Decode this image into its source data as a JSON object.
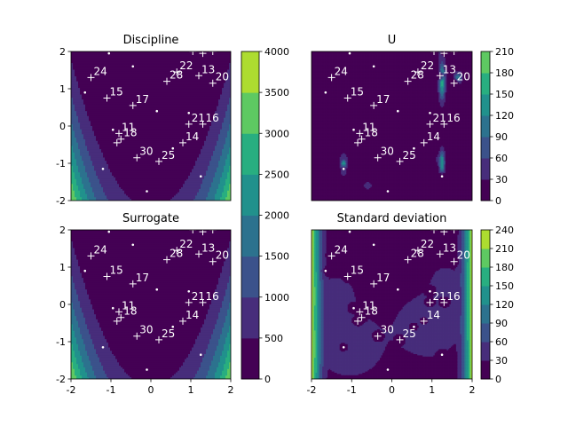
{
  "figure": {
    "colormap": [
      "#440154",
      "#472d7b",
      "#3b528b",
      "#2c728e",
      "#21918c",
      "#28ae80",
      "#5ec962",
      "#addc30",
      "#fde725"
    ],
    "point_color": "#ffffff"
  },
  "chart_data": [
    {
      "type": "heatmap",
      "title": "Discipline",
      "field": "rosenbrock",
      "xlim": [
        -2,
        2
      ],
      "ylim": [
        -2,
        2
      ],
      "xticks": [],
      "yticks": [
        -2,
        -1,
        0,
        1,
        2
      ],
      "colorbar": {
        "levels": [
          0,
          500,
          1000,
          1500,
          2000,
          2500,
          3000,
          3500,
          4000
        ],
        "ticks": [
          0,
          500,
          1000,
          1500,
          2000,
          2500,
          3000,
          3500,
          4000
        ]
      }
    },
    {
      "type": "heatmap",
      "title": "U",
      "field": "u",
      "xlim": [
        -2,
        2
      ],
      "ylim": [
        -2,
        2
      ],
      "xticks": [],
      "yticks": [],
      "colorbar": {
        "levels": [
          0,
          30,
          60,
          90,
          120,
          150,
          180,
          210
        ],
        "ticks": [
          0,
          30,
          60,
          90,
          120,
          150,
          180,
          210
        ]
      }
    },
    {
      "type": "heatmap",
      "title": "Surrogate",
      "field": "surrogate",
      "xlim": [
        -2,
        2
      ],
      "ylim": [
        -2,
        2
      ],
      "xticks": [
        -2,
        -1,
        0,
        1,
        2
      ],
      "yticks": [
        -2,
        -1,
        0,
        1,
        2
      ]
    },
    {
      "type": "heatmap",
      "title": "Standard deviation",
      "field": "std",
      "xlim": [
        -2,
        2
      ],
      "ylim": [
        -2,
        2
      ],
      "xticks": [
        -2,
        -1,
        0,
        1,
        2
      ],
      "yticks": [],
      "colorbar": {
        "levels": [
          0,
          30,
          60,
          90,
          120,
          150,
          180,
          210,
          240
        ],
        "ticks": [
          0,
          30,
          60,
          90,
          120,
          150,
          180,
          210,
          240
        ]
      }
    }
  ],
  "points": {
    "labeled": [
      {
        "label": "11",
        "x": -0.8,
        "y": -0.2
      },
      {
        "label": "13",
        "x": 1.2,
        "y": 1.35
      },
      {
        "label": "14",
        "x": 0.8,
        "y": -0.45
      },
      {
        "label": "15",
        "x": -1.1,
        "y": 0.75
      },
      {
        "label": "16",
        "x": 1.3,
        "y": 0.05
      },
      {
        "label": "17",
        "x": -0.45,
        "y": 0.55
      },
      {
        "label": "18",
        "x": -0.75,
        "y": -0.35
      },
      {
        "label": "20",
        "x": 1.55,
        "y": 1.15
      },
      {
        "label": "21",
        "x": 0.95,
        "y": 0.05
      },
      {
        "label": "22",
        "x": 0.65,
        "y": 1.45
      },
      {
        "label": "24",
        "x": -1.5,
        "y": 1.3
      },
      {
        "label": "25",
        "x": 0.2,
        "y": -0.95
      },
      {
        "label": "28",
        "x": 0.4,
        "y": 1.2
      },
      {
        "label": "30",
        "x": -0.35,
        "y": -0.85
      },
      {
        "label": "",
        "x": -0.85,
        "y": -0.45
      },
      {
        "label": "",
        "x": 1.05,
        "y": 2.0
      },
      {
        "label": "",
        "x": 1.3,
        "y": 1.95
      },
      {
        "label": "",
        "x": 1.55,
        "y": 2.0
      }
    ],
    "samples": [
      {
        "x": -1.65,
        "y": 0.9
      },
      {
        "x": -0.45,
        "y": 1.6
      },
      {
        "x": 0.15,
        "y": 0.4
      },
      {
        "x": -0.95,
        "y": -0.1
      },
      {
        "x": 0.95,
        "y": 0.35
      },
      {
        "x": -1.2,
        "y": -1.15
      },
      {
        "x": 1.25,
        "y": -1.35
      },
      {
        "x": -0.1,
        "y": -1.75
      },
      {
        "x": 0.55,
        "y": -0.6
      },
      {
        "x": -1.05,
        "y": 1.95
      }
    ]
  }
}
